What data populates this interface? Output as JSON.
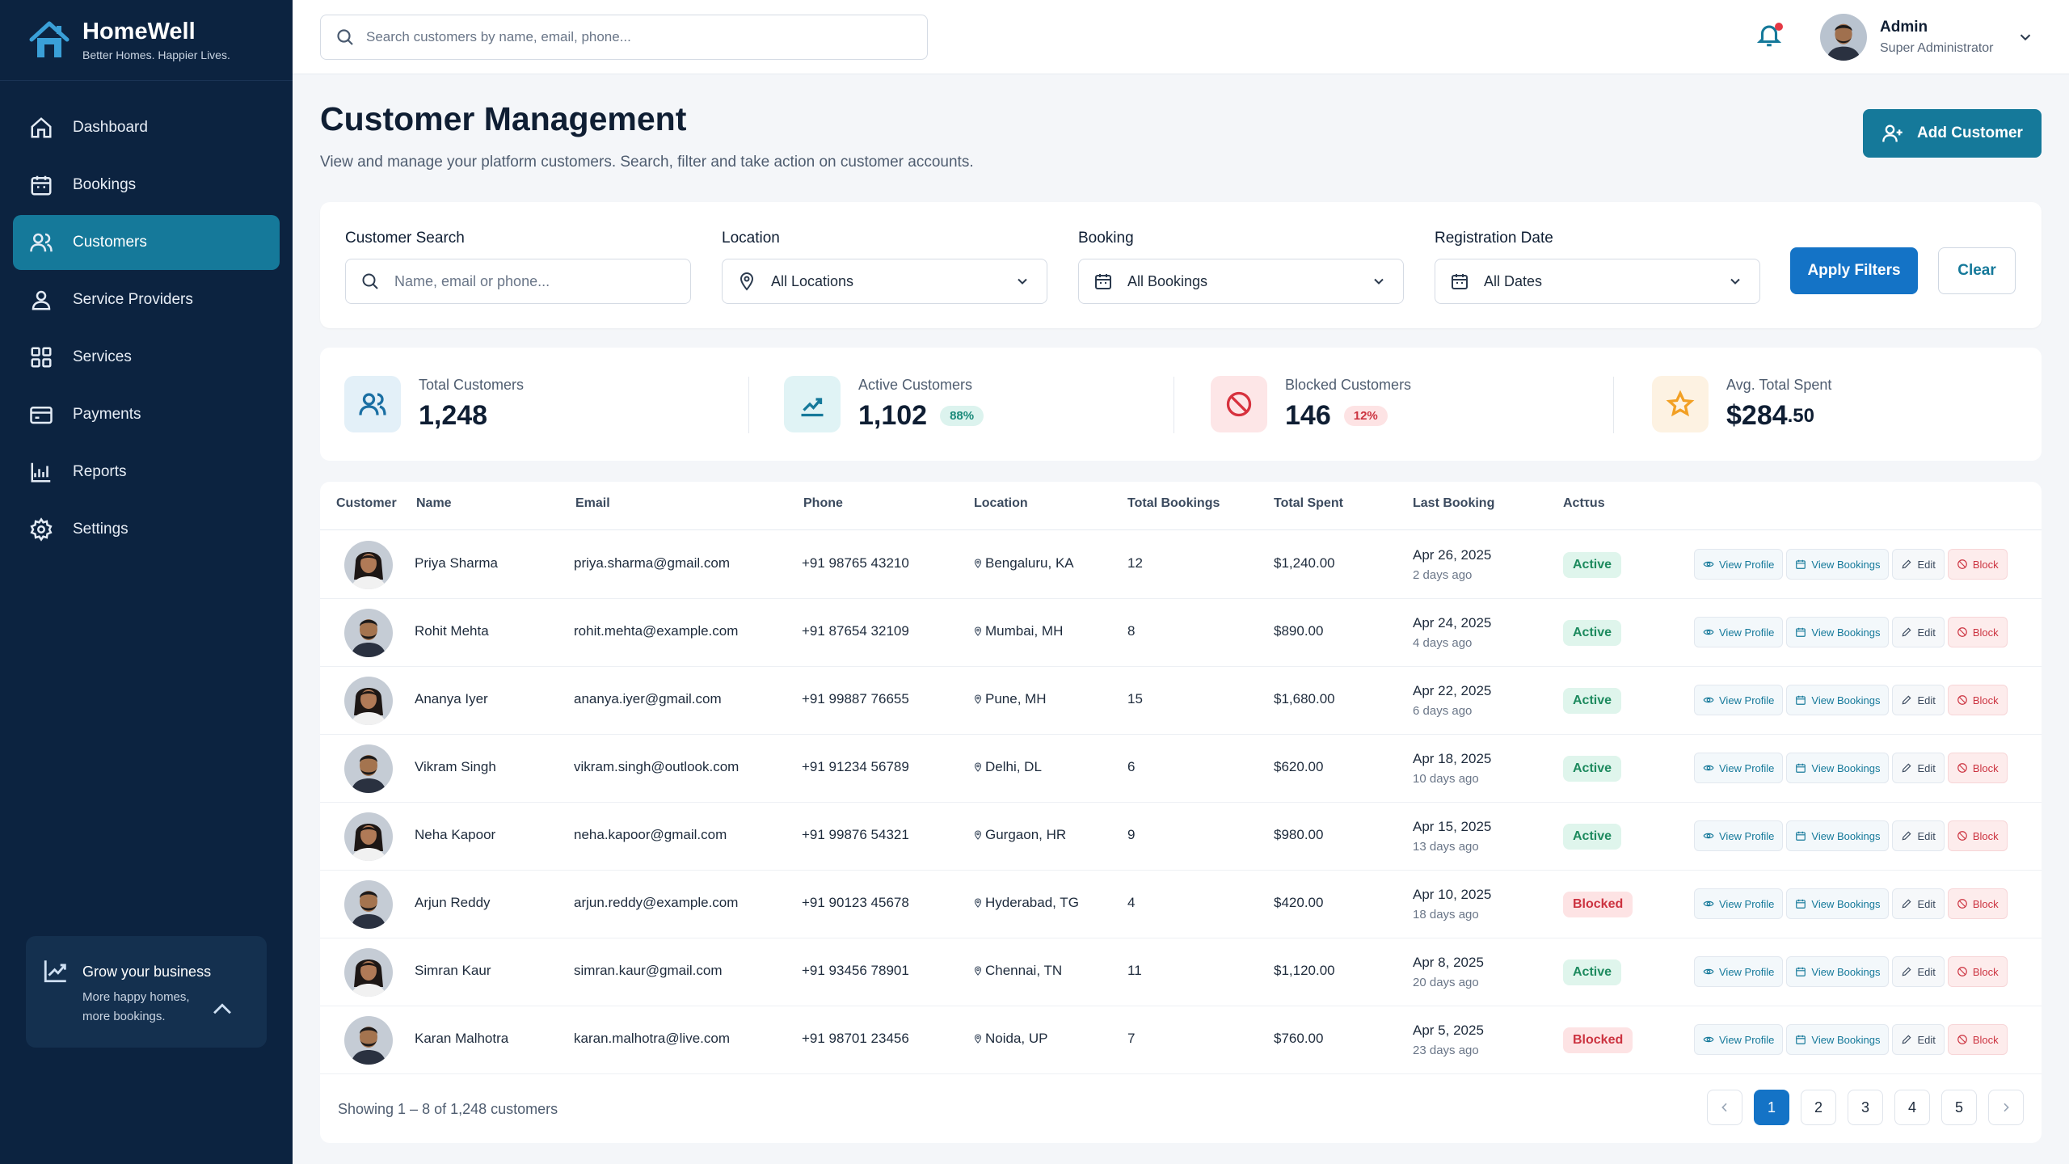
{
  "brand": {
    "name": "HomeWell",
    "tagline": "Better Homes. Happier Lives."
  },
  "sidebar": {
    "items": [
      {
        "label": "Dashboard",
        "icon": "home-icon"
      },
      {
        "label": "Bookings",
        "icon": "calendar-icon"
      },
      {
        "label": "Customers",
        "icon": "users-icon",
        "active": true
      },
      {
        "label": "Service Providers",
        "icon": "user-icon"
      },
      {
        "label": "Services",
        "icon": "grid-icon"
      },
      {
        "label": "Payments",
        "icon": "card-icon"
      },
      {
        "label": "Reports",
        "icon": "chart-icon"
      },
      {
        "label": "Settings",
        "icon": "gear-icon"
      }
    ],
    "promo": {
      "title": "Grow your business",
      "text": "More happy homes, more bookings."
    }
  },
  "topbar": {
    "search_placeholder": "Search customers by name, email, phone...",
    "user": {
      "name": "Admin",
      "role": "Super Administrator"
    }
  },
  "page": {
    "title": "Customer Management",
    "subtitle": "View and manage your platform customers. Search, filter and take action on customer accounts.",
    "add_button": "Add Customer"
  },
  "filters": {
    "search": {
      "label": "Customer Search",
      "placeholder": "Name, email or phone..."
    },
    "location": {
      "label": "Location",
      "value": "All Locations"
    },
    "booking": {
      "label": "Booking",
      "value": "All Bookings"
    },
    "date": {
      "label": "Registration Date",
      "value": "All Dates"
    },
    "apply": "Apply Filters",
    "clear": "Clear"
  },
  "stats": {
    "total": {
      "label": "Total Customers",
      "value": "1,248"
    },
    "active": {
      "label": "Active Customers",
      "value": "1,102",
      "pct": "88%"
    },
    "blocked": {
      "label": "Blocked Customers",
      "value": "146",
      "pct": "12%"
    },
    "avg": {
      "label": "Avg. Total Spent",
      "value": "$284",
      "cents": ".50"
    }
  },
  "table": {
    "headers": [
      "Customer",
      "Name",
      "Email",
      "Phone",
      "Location",
      "Total Bookings",
      "Total Spent",
      "Last Booking",
      "Actτus"
    ],
    "actions": {
      "view": "View Profile",
      "bookings": "View Bookings",
      "edit": "Edit",
      "block": "Block"
    },
    "rows": [
      {
        "name": "Priya Sharma",
        "email": "priya.sharma@gmail.com",
        "phone": "+91 98765 43210",
        "location": "Bengaluru, KA",
        "bookings": "12",
        "spent": "$1,240.00",
        "last": "Apr 26, 2025",
        "ago": "2 days ago",
        "status": "Active",
        "gender": "f"
      },
      {
        "name": "Rohit Mehta",
        "email": "rohit.mehta@example.com",
        "phone": "+91 87654 32109",
        "location": "Mumbai, MH",
        "bookings": "8",
        "spent": "$890.00",
        "last": "Apr 24, 2025",
        "ago": "4 days ago",
        "status": "Active",
        "gender": "m"
      },
      {
        "name": "Ananya Iyer",
        "email": "ananya.iyer@gmail.com",
        "phone": "+91 99887 76655",
        "location": "Pune, MH",
        "bookings": "15",
        "spent": "$1,680.00",
        "last": "Apr 22, 2025",
        "ago": "6 days ago",
        "status": "Active",
        "gender": "f"
      },
      {
        "name": "Vikram Singh",
        "email": "vikram.singh@outlook.com",
        "phone": "+91 91234 56789",
        "location": "Delhi, DL",
        "bookings": "6",
        "spent": "$620.00",
        "last": "Apr 18, 2025",
        "ago": "10 days ago",
        "status": "Active",
        "gender": "m"
      },
      {
        "name": "Neha Kapoor",
        "email": "neha.kapoor@gmail.com",
        "phone": "+91 99876 54321",
        "location": "Gurgaon, HR",
        "bookings": "9",
        "spent": "$980.00",
        "last": "Apr 15, 2025",
        "ago": "13 days ago",
        "status": "Active",
        "gender": "f"
      },
      {
        "name": "Arjun Reddy",
        "email": "arjun.reddy@example.com",
        "phone": "+91 90123 45678",
        "location": "Hyderabad, TG",
        "bookings": "4",
        "spent": "$420.00",
        "last": "Apr 10, 2025",
        "ago": "18 days ago",
        "status": "Blocked",
        "gender": "m"
      },
      {
        "name": "Simran Kaur",
        "email": "simran.kaur@gmail.com",
        "phone": "+91 93456 78901",
        "location": "Chennai, TN",
        "bookings": "11",
        "spent": "$1,120.00",
        "last": "Apr 8, 2025",
        "ago": "20 days ago",
        "status": "Active",
        "gender": "f"
      },
      {
        "name": "Karan Malhotra",
        "email": "karan.malhotra@live.com",
        "phone": "+91 98701 23456",
        "location": "Noida, UP",
        "bookings": "7",
        "spent": "$760.00",
        "last": "Apr 5, 2025",
        "ago": "23 days ago",
        "status": "Blocked",
        "gender": "m"
      }
    ],
    "footer": "Showing 1 – 8 of 1,248 customers",
    "pages": [
      "1",
      "2",
      "3",
      "4",
      "5"
    ]
  },
  "colors": {
    "sidebar": "#0c2340",
    "accent": "#15799a",
    "primary": "#1473c6",
    "active": "#1d8a5e",
    "blocked": "#cc3340"
  }
}
